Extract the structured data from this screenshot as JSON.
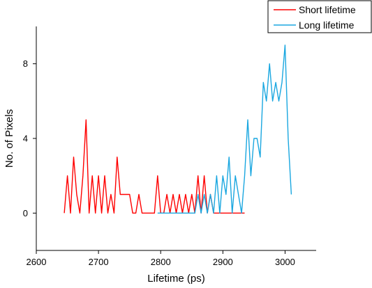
{
  "chart_data": {
    "type": "line",
    "title": "",
    "xlabel": "Lifetime (ps)",
    "ylabel": "No. of Pixels",
    "xlim": [
      2600,
      3050
    ],
    "ylim": [
      -2,
      10
    ],
    "x_ticks": [
      2600,
      2700,
      2800,
      2900,
      3000
    ],
    "y_ticks": [
      0,
      4,
      8
    ],
    "x_tick_labels": [
      "2600",
      "2700",
      "2800",
      "2900",
      "3000"
    ],
    "y_tick_labels": [
      "0",
      "4",
      "8"
    ],
    "grid": false,
    "legend_position": "top-right",
    "series": [
      {
        "name": "Short lifetime",
        "color": "#ff0000",
        "x": [
          2645,
          2650,
          2655,
          2660,
          2665,
          2670,
          2675,
          2680,
          2685,
          2690,
          2695,
          2700,
          2705,
          2710,
          2715,
          2720,
          2725,
          2730,
          2735,
          2740,
          2745,
          2750,
          2755,
          2760,
          2765,
          2770,
          2775,
          2780,
          2785,
          2790,
          2795,
          2800,
          2805,
          2810,
          2815,
          2820,
          2825,
          2830,
          2835,
          2840,
          2845,
          2850,
          2855,
          2860,
          2865,
          2870,
          2875,
          2880,
          2885,
          2890,
          2895,
          2900,
          2905,
          2910,
          2915,
          2920,
          2925,
          2930,
          2935
        ],
        "y": [
          0,
          2,
          0,
          3,
          1,
          0,
          2,
          5,
          0,
          2,
          0,
          2,
          0,
          2,
          0,
          1,
          0,
          3,
          1,
          1,
          1,
          1,
          0,
          0,
          1,
          0,
          0,
          0,
          0,
          0,
          2,
          0,
          0,
          1,
          0,
          1,
          0,
          1,
          0,
          1,
          0,
          1,
          0,
          2,
          0,
          2,
          0,
          1,
          0,
          0,
          0,
          0,
          0,
          0,
          0,
          0,
          0,
          0,
          0
        ]
      },
      {
        "name": "Long lifetime",
        "color": "#1aa7e0",
        "x": [
          2795,
          2800,
          2805,
          2810,
          2815,
          2820,
          2825,
          2830,
          2835,
          2840,
          2845,
          2850,
          2855,
          2860,
          2865,
          2870,
          2875,
          2880,
          2885,
          2890,
          2895,
          2900,
          2905,
          2910,
          2915,
          2920,
          2925,
          2930,
          2935,
          2940,
          2945,
          2950,
          2955,
          2960,
          2965,
          2970,
          2975,
          2980,
          2985,
          2990,
          2995,
          3000,
          3005,
          3010
        ],
        "y": [
          0,
          0,
          0,
          0,
          0,
          0,
          0,
          0,
          0,
          0,
          0,
          0,
          0,
          1,
          0,
          1,
          0,
          1,
          0,
          2,
          0,
          2,
          1,
          3,
          0,
          2,
          1,
          0,
          2,
          5,
          2,
          4,
          4,
          3,
          7,
          6,
          8,
          6,
          7,
          6,
          7,
          9,
          4,
          1
        ]
      }
    ]
  }
}
